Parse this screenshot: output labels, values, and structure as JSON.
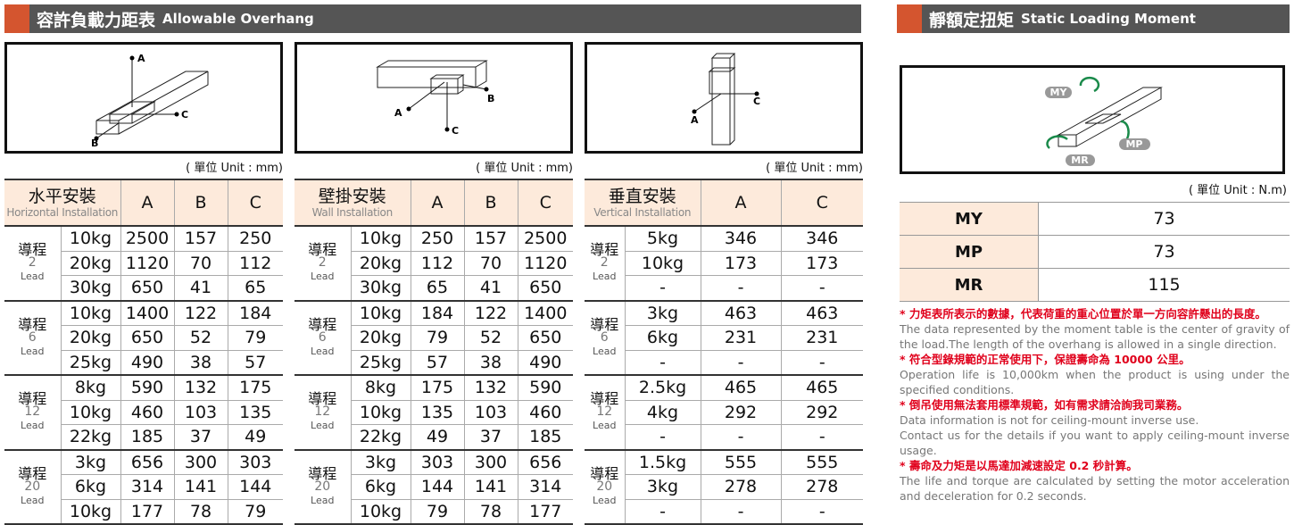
{
  "overhang": {
    "title_zh": "容許負載力距表",
    "title_en": "Allowable Overhang",
    "diagrams": [
      {
        "labels": [
          "A",
          "B",
          "C"
        ]
      },
      {
        "labels": [
          "A",
          "B",
          "C"
        ]
      },
      {
        "labels": [
          "A",
          "C"
        ]
      }
    ],
    "tables": [
      {
        "unit": "( 單位 Unit : mm)",
        "header_zh": "水平安裝",
        "header_en": "Horizontal Installation",
        "columns": [
          "A",
          "B",
          "C"
        ],
        "groups": [
          {
            "label": "導程",
            "lead": 2,
            "lead_en": "Lead",
            "rows": [
              [
                "10kg",
                2500,
                157,
                250
              ],
              [
                "20kg",
                1120,
                70,
                112
              ],
              [
                "30kg",
                650,
                41,
                65
              ]
            ]
          },
          {
            "label": "導程",
            "lead": 6,
            "lead_en": "Lead",
            "rows": [
              [
                "10kg",
                1400,
                122,
                184
              ],
              [
                "20kg",
                650,
                52,
                79
              ],
              [
                "25kg",
                490,
                38,
                57
              ]
            ]
          },
          {
            "label": "導程",
            "lead": 12,
            "lead_en": "Lead",
            "rows": [
              [
                "8kg",
                590,
                132,
                175
              ],
              [
                "10kg",
                460,
                103,
                135
              ],
              [
                "22kg",
                185,
                37,
                49
              ]
            ]
          },
          {
            "label": "導程",
            "lead": 20,
            "lead_en": "Lead",
            "rows": [
              [
                "3kg",
                656,
                300,
                303
              ],
              [
                "6kg",
                314,
                141,
                144
              ],
              [
                "10kg",
                177,
                78,
                79
              ]
            ]
          }
        ]
      },
      {
        "unit": "( 單位 Unit : mm)",
        "header_zh": "壁掛安裝",
        "header_en": "Wall Installation",
        "columns": [
          "A",
          "B",
          "C"
        ],
        "groups": [
          {
            "label": "導程",
            "lead": 2,
            "lead_en": "Lead",
            "rows": [
              [
                "10kg",
                250,
                157,
                2500
              ],
              [
                "20kg",
                112,
                70,
                1120
              ],
              [
                "30kg",
                65,
                41,
                650
              ]
            ]
          },
          {
            "label": "導程",
            "lead": 6,
            "lead_en": "Lead",
            "rows": [
              [
                "10kg",
                184,
                122,
                1400
              ],
              [
                "20kg",
                79,
                52,
                650
              ],
              [
                "25kg",
                57,
                38,
                490
              ]
            ]
          },
          {
            "label": "導程",
            "lead": 12,
            "lead_en": "Lead",
            "rows": [
              [
                "8kg",
                175,
                132,
                590
              ],
              [
                "10kg",
                135,
                103,
                460
              ],
              [
                "22kg",
                49,
                37,
                185
              ]
            ]
          },
          {
            "label": "導程",
            "lead": 20,
            "lead_en": "Lead",
            "rows": [
              [
                "3kg",
                303,
                300,
                656
              ],
              [
                "6kg",
                144,
                141,
                314
              ],
              [
                "10kg",
                79,
                78,
                177
              ]
            ]
          }
        ]
      },
      {
        "unit": "( 單位 Unit : mm)",
        "header_zh": "垂直安裝",
        "header_en": "Vertical Installation",
        "columns": [
          "A",
          "C"
        ],
        "groups": [
          {
            "label": "導程",
            "lead": 2,
            "lead_en": "Lead",
            "rows": [
              [
                "5kg",
                346,
                346
              ],
              [
                "10kg",
                173,
                173
              ],
              [
                "-",
                "-",
                "-"
              ]
            ]
          },
          {
            "label": "導程",
            "lead": 6,
            "lead_en": "Lead",
            "rows": [
              [
                "3kg",
                463,
                463
              ],
              [
                "6kg",
                231,
                231
              ],
              [
                "-",
                "-",
                "-"
              ]
            ]
          },
          {
            "label": "導程",
            "lead": 12,
            "lead_en": "Lead",
            "rows": [
              [
                "2.5kg",
                465,
                465
              ],
              [
                "4kg",
                292,
                292
              ],
              [
                "-",
                "-",
                "-"
              ]
            ]
          },
          {
            "label": "導程",
            "lead": 20,
            "lead_en": "Lead",
            "rows": [
              [
                "1.5kg",
                555,
                555
              ],
              [
                "3kg",
                278,
                278
              ],
              [
                "-",
                "-",
                "-"
              ]
            ]
          }
        ]
      }
    ]
  },
  "moment": {
    "title_zh": "靜額定扭矩",
    "title_en": "Static Loading Moment",
    "diagram_labels": [
      "MY",
      "MP",
      "MR"
    ],
    "unit": "( 單位 Unit : N.m)",
    "rows": [
      {
        "name": "MY",
        "value": 73
      },
      {
        "name": "MP",
        "value": 73
      },
      {
        "name": "MR",
        "value": 115
      }
    ],
    "notes": [
      {
        "zh": "* 力矩表所表示的數據，代表荷重的重心位置於單一方向容許懸出的長度。",
        "en": [
          "The data represented by the moment table is the center of gravity of the load.The length of the overhang is allowed in a single direction."
        ]
      },
      {
        "zh": "* 符合型錄規範的正常使用下，保證壽命為 10000 公里。",
        "en": [
          "Operation life is 10,000km when the product is using under the specified conditions."
        ]
      },
      {
        "zh": "* 倒吊使用無法套用標準規範，如有需求請洽詢我司業務。",
        "en": [
          "Data information is not for ceiling-mount inverse use.",
          "Contact us for the details if you want to apply ceiling-mount inverse usage."
        ]
      },
      {
        "zh": "* 壽命及力矩是以馬達加減速設定 0.2 秒計算。",
        "en": [
          "The life and torque are calculated by setting the motor acceleration and deceleration for 0.2 seconds."
        ]
      }
    ]
  }
}
